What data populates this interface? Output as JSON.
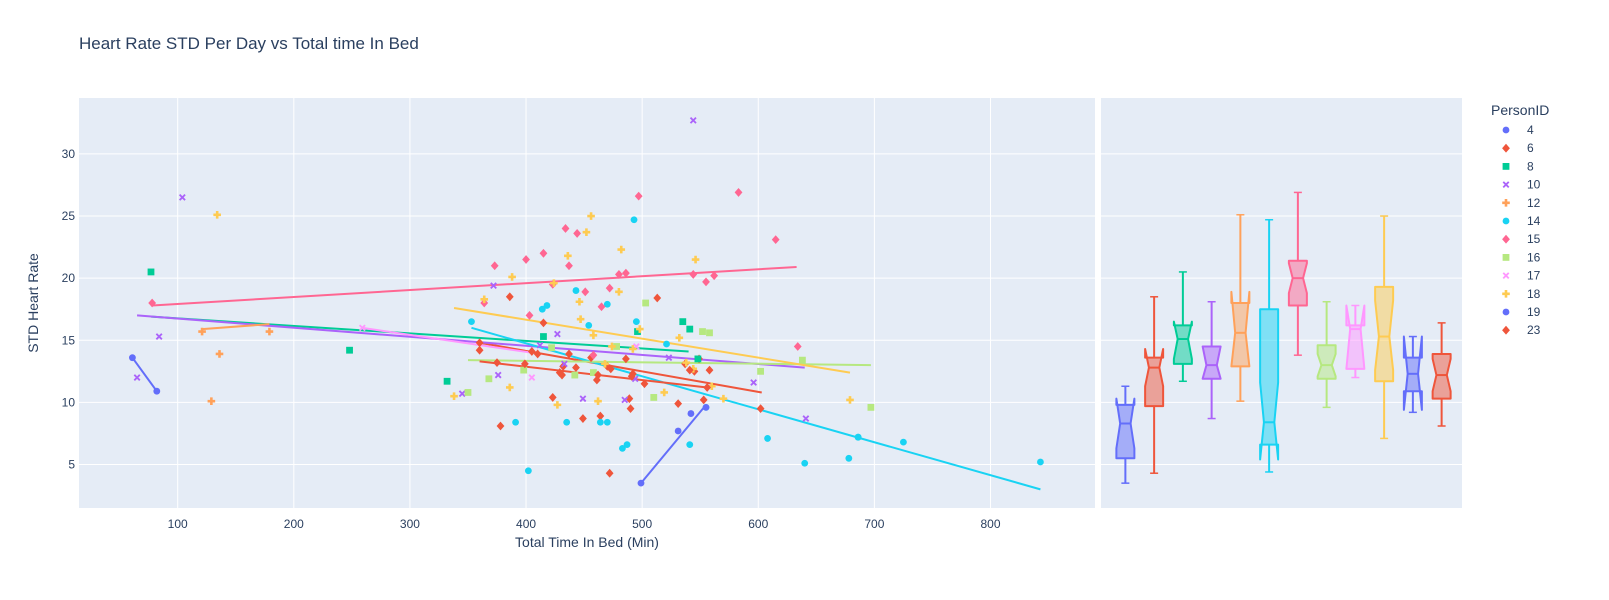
{
  "colors": {
    "background": "#ffffff",
    "plot_bg": "#e5ecf6",
    "grid": "#ffffff",
    "text": "#2a3f5f"
  },
  "chart_data": {
    "type": "scatter",
    "title": "Heart Rate STD Per Day vs Total time In Bed",
    "xlabel": "Total Time In Bed  (Min)",
    "ylabel": "STD Heart Rate",
    "xlim": [
      15,
      890
    ],
    "ylim": [
      1.5,
      34.5
    ],
    "xticks": [
      100,
      200,
      300,
      400,
      500,
      600,
      700,
      800
    ],
    "yticks": [
      5,
      10,
      15,
      20,
      25,
      30
    ],
    "grid": true,
    "legend": {
      "title": "PersonID",
      "placement": "right"
    },
    "marginal": "box (notched)",
    "series": [
      {
        "name": "4",
        "color": "#636efa",
        "symbol": "circle",
        "points": [
          [
            61,
            13.6
          ],
          [
            82,
            10.9
          ]
        ],
        "trendline": [
          [
            61,
            13.6
          ],
          [
            82,
            10.9
          ]
        ],
        "box": {
          "min": 3.5,
          "q1": 5.5,
          "median": 8.3,
          "q3": 9.8,
          "max": 11.3,
          "notch": [
            6.3,
            10.3
          ]
        }
      },
      {
        "name": "6",
        "color": "#ef553b",
        "symbol": "diamond",
        "points": [
          [
            360,
            14.8
          ],
          [
            378,
            8.1
          ],
          [
            386,
            18.5
          ],
          [
            405,
            14.1
          ],
          [
            410,
            13.9
          ],
          [
            415,
            16.4
          ],
          [
            423,
            10.4
          ],
          [
            429,
            12.4
          ],
          [
            432,
            12.9
          ],
          [
            443,
            12.8
          ],
          [
            449,
            8.7
          ],
          [
            456,
            13.6
          ],
          [
            461,
            11.8
          ],
          [
            464,
            8.9
          ],
          [
            470,
            12.9
          ],
          [
            472,
            4.3
          ],
          [
            486,
            13.5
          ],
          [
            489,
            10.3
          ],
          [
            490,
            9.5
          ],
          [
            492,
            12.3
          ],
          [
            502,
            11.5
          ],
          [
            513,
            18.4
          ],
          [
            531,
            9.9
          ],
          [
            537,
            13.1
          ],
          [
            545,
            12.5
          ],
          [
            549,
            13.5
          ],
          [
            553,
            10.2
          ],
          [
            558,
            12.6
          ],
          [
            602,
            9.5
          ]
        ],
        "trendline": [
          [
            360,
            14.8
          ],
          [
            603,
            10.8
          ]
        ],
        "box": {
          "min": 4.3,
          "q1": 9.7,
          "median": 12.8,
          "q3": 13.6,
          "max": 18.5,
          "notch": [
            11.3,
            14.3
          ]
        }
      },
      {
        "name": "8",
        "color": "#00cc96",
        "symbol": "square",
        "points": [
          [
            77,
            20.5
          ],
          [
            248,
            14.2
          ],
          [
            332,
            11.7
          ],
          [
            415,
            15.3
          ],
          [
            496,
            15.7
          ],
          [
            535,
            16.5
          ],
          [
            541,
            15.9
          ],
          [
            548,
            13.5
          ]
        ],
        "trendline": [
          [
            77,
            16.9
          ],
          [
            540,
            14.1
          ]
        ],
        "box": {
          "min": 11.7,
          "q1": 13.1,
          "median": 15.1,
          "q3": 16.2,
          "max": 20.5,
          "notch": [
            13.5,
            16.5
          ]
        }
      },
      {
        "name": "10",
        "color": "#ab63fa",
        "symbol": "x",
        "points": [
          [
            65,
            12.0
          ],
          [
            84,
            15.3
          ],
          [
            104,
            26.5
          ],
          [
            345,
            10.7
          ],
          [
            372,
            19.4
          ],
          [
            376,
            12.2
          ],
          [
            412,
            14.6
          ],
          [
            427,
            15.5
          ],
          [
            433,
            13.1
          ],
          [
            449,
            10.3
          ],
          [
            485,
            10.2
          ],
          [
            494,
            11.9
          ],
          [
            523,
            13.6
          ],
          [
            544,
            32.7
          ],
          [
            596,
            11.6
          ],
          [
            641,
            8.7
          ]
        ],
        "trendline": [
          [
            65,
            17.0
          ],
          [
            640,
            12.8
          ]
        ],
        "box": {
          "min": 8.7,
          "q1": 11.9,
          "median": 13.0,
          "q3": 14.5,
          "max": 18.1,
          "notch": [
            11.9,
            14.5
          ]
        }
      },
      {
        "name": "12",
        "color": "#ffa15a",
        "symbol": "cross",
        "points": [
          [
            121,
            15.7
          ],
          [
            129,
            10.1
          ],
          [
            136,
            13.9
          ],
          [
            179,
            15.7
          ]
        ],
        "trendline": [
          [
            121,
            15.9
          ],
          [
            179,
            16.3
          ]
        ],
        "box": {
          "min": 10.1,
          "q1": 12.9,
          "median": 15.6,
          "q3": 18.0,
          "max": 25.1,
          "notch": [
            12.9,
            18.9
          ]
        }
      },
      {
        "name": "14",
        "color": "#19d3f3",
        "symbol": "circle",
        "points": [
          [
            353,
            16.5
          ],
          [
            391,
            8.4
          ],
          [
            402,
            4.5
          ],
          [
            414,
            17.5
          ],
          [
            418,
            17.8
          ],
          [
            435,
            8.4
          ],
          [
            443,
            19.0
          ],
          [
            454,
            16.2
          ],
          [
            464,
            8.4
          ],
          [
            470,
            8.4
          ],
          [
            470,
            17.9
          ],
          [
            483,
            6.3
          ],
          [
            487,
            6.6
          ],
          [
            493,
            24.7
          ],
          [
            495,
            16.5
          ],
          [
            521,
            14.7
          ],
          [
            541,
            6.6
          ],
          [
            555,
            9.6
          ],
          [
            608,
            7.1
          ],
          [
            640,
            5.1
          ],
          [
            678,
            5.5
          ],
          [
            686,
            7.2
          ],
          [
            686,
            7.2
          ],
          [
            725,
            6.8
          ],
          [
            843,
            5.2
          ]
        ],
        "trendline": [
          [
            353,
            16.0
          ],
          [
            843,
            3.0
          ]
        ],
        "box": {
          "min": 4.4,
          "q1": 6.6,
          "median": 8.4,
          "q3": 17.5,
          "max": 24.7,
          "notch": [
            5.4,
            11.6
          ]
        }
      },
      {
        "name": "15",
        "color": "#ff6692",
        "symbol": "diamond",
        "points": [
          [
            78,
            18.0
          ],
          [
            364,
            18.0
          ],
          [
            373,
            21.0
          ],
          [
            400,
            21.5
          ],
          [
            403,
            17.0
          ],
          [
            415,
            22.0
          ],
          [
            423,
            19.5
          ],
          [
            434,
            24.0
          ],
          [
            437,
            21.0
          ],
          [
            444,
            23.6
          ],
          [
            451,
            18.9
          ],
          [
            458,
            13.8
          ],
          [
            465,
            17.7
          ],
          [
            472,
            19.2
          ],
          [
            480,
            20.3
          ],
          [
            486,
            20.4
          ],
          [
            497,
            26.6
          ],
          [
            544,
            20.3
          ],
          [
            555,
            19.7
          ],
          [
            562,
            20.2
          ],
          [
            583,
            26.9
          ],
          [
            615,
            23.1
          ],
          [
            634,
            14.5
          ]
        ],
        "trendline": [
          [
            78,
            17.8
          ],
          [
            633,
            20.9
          ]
        ],
        "box": {
          "min": 13.8,
          "q1": 17.8,
          "median": 20.0,
          "q3": 21.4,
          "max": 26.9,
          "notch": [
            18.8,
            21.2
          ]
        }
      },
      {
        "name": "16",
        "color": "#b6e880",
        "symbol": "square",
        "points": [
          [
            350,
            10.8
          ],
          [
            368,
            11.9
          ],
          [
            398,
            12.6
          ],
          [
            422,
            14.4
          ],
          [
            442,
            12.2
          ],
          [
            458,
            12.4
          ],
          [
            478,
            14.5
          ],
          [
            503,
            18.0
          ],
          [
            510,
            10.4
          ],
          [
            552,
            15.7
          ],
          [
            558,
            15.6
          ],
          [
            602,
            12.5
          ],
          [
            638,
            13.4
          ],
          [
            697,
            9.6
          ]
        ],
        "trendline": [
          [
            350,
            13.4
          ],
          [
            697,
            13.0
          ]
        ],
        "box": {
          "min": 9.6,
          "q1": 11.9,
          "median": 13.0,
          "q3": 14.6,
          "max": 18.1,
          "notch": [
            12.1,
            13.9
          ]
        }
      },
      {
        "name": "17",
        "color": "#ff97ff",
        "symbol": "x",
        "points": [
          [
            259,
            16.0
          ],
          [
            405,
            12.0
          ],
          [
            495,
            14.5
          ]
        ],
        "trendline": [
          [
            259,
            16.0
          ],
          [
            405,
            14.0
          ]
        ],
        "box": {
          "min": 12.0,
          "q1": 12.7,
          "median": 15.9,
          "q3": 16.2,
          "max": 17.8,
          "notch": [
            12.7,
            17.8
          ]
        }
      },
      {
        "name": "18",
        "color": "#fecb52",
        "symbol": "cross",
        "points": [
          [
            134,
            25.1
          ],
          [
            338,
            10.5
          ],
          [
            364,
            18.3
          ],
          [
            386,
            11.2
          ],
          [
            388,
            20.1
          ],
          [
            424,
            19.6
          ],
          [
            427,
            9.8
          ],
          [
            436,
            21.8
          ],
          [
            446,
            18.1
          ],
          [
            447,
            16.7
          ],
          [
            452,
            23.7
          ],
          [
            456,
            25.0
          ],
          [
            458,
            15.4
          ],
          [
            462,
            10.1
          ],
          [
            468,
            13.1
          ],
          [
            474,
            14.5
          ],
          [
            480,
            18.9
          ],
          [
            482,
            22.3
          ],
          [
            492,
            14.3
          ],
          [
            498,
            15.9
          ],
          [
            519,
            10.8
          ],
          [
            532,
            15.2
          ],
          [
            538,
            13.2
          ],
          [
            544,
            12.7
          ],
          [
            546,
            21.5
          ],
          [
            560,
            11.3
          ],
          [
            570,
            10.3
          ],
          [
            679,
            10.2
          ]
        ],
        "trendline": [
          [
            338,
            17.6
          ],
          [
            679,
            12.4
          ]
        ],
        "box": {
          "min": 7.1,
          "q1": 11.7,
          "median": 15.3,
          "q3": 19.3,
          "max": 25.0,
          "notch": [
            12.6,
            18.2
          ]
        }
      },
      {
        "name": "19",
        "color": "#636efa",
        "symbol": "circle",
        "points": [
          [
            499,
            3.5
          ],
          [
            531,
            7.7
          ],
          [
            542,
            9.1
          ],
          [
            555,
            9.6
          ]
        ],
        "trendline": [
          [
            499,
            3.5
          ],
          [
            555,
            9.8
          ]
        ],
        "box": {
          "min": 9.2,
          "q1": 10.9,
          "median": 12.3,
          "q3": 13.6,
          "max": 15.3,
          "notch": [
            9.4,
            15.3
          ]
        }
      },
      {
        "name": "23",
        "color": "#ef553b",
        "symbol": "diamond",
        "points": [
          [
            360,
            14.2
          ],
          [
            375,
            13.2
          ],
          [
            399,
            13.1
          ],
          [
            431,
            12.2
          ],
          [
            437,
            13.9
          ],
          [
            462,
            12.2
          ],
          [
            473,
            12.7
          ],
          [
            491,
            12.1
          ],
          [
            541,
            12.6
          ],
          [
            556,
            11.2
          ]
        ],
        "trendline": [
          [
            360,
            13.3
          ],
          [
            556,
            11.2
          ]
        ],
        "box": {
          "min": 8.1,
          "q1": 10.3,
          "median": 12.2,
          "q3": 13.9,
          "max": 16.4,
          "notch": [
            10.9,
            13.5
          ]
        }
      }
    ]
  }
}
